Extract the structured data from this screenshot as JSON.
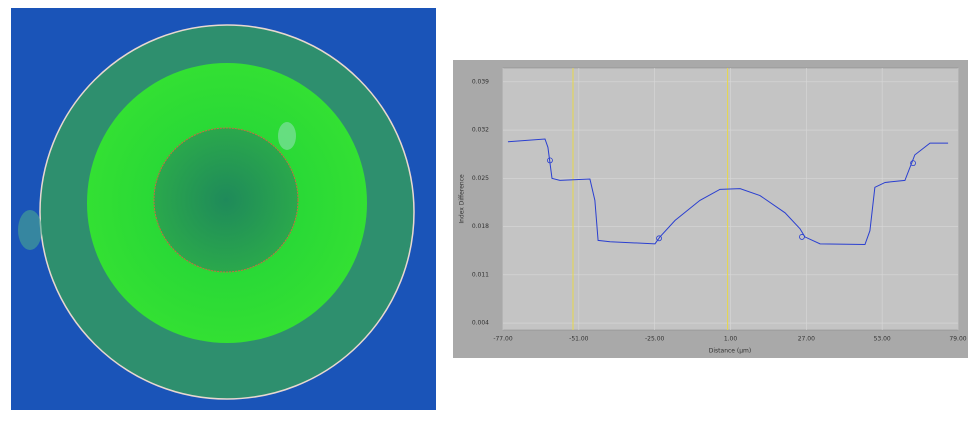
{
  "chart_data": {
    "type": "line",
    "xlabel": "Distance (µm)",
    "ylabel": "Index Difference",
    "x": [
      -75.3,
      -62.6,
      -61.6,
      -60.2,
      -57.5,
      -47.2,
      -45.5,
      -44.4,
      -40.3,
      -24.9,
      -23.2,
      -18.0,
      -9.5,
      -2.6,
      4.3,
      11.1,
      19.7,
      24.8,
      26.5,
      31.7,
      47.1,
      48.8,
      50.5,
      54.0,
      60.8,
      64.2,
      69.4,
      75.6
    ],
    "series": [
      {
        "color": "#2a3fd0",
        "values": [
          0.0303,
          0.0307,
          0.0295,
          0.025,
          0.0247,
          0.0249,
          0.0218,
          0.016,
          0.0158,
          0.0155,
          0.0165,
          0.0189,
          0.0218,
          0.0234,
          0.0235,
          0.0225,
          0.02,
          0.0177,
          0.0165,
          0.0155,
          0.0154,
          0.0174,
          0.0237,
          0.0244,
          0.0247,
          0.0284,
          0.0301,
          0.0301
        ]
      }
    ],
    "markers": {
      "x": [
        -60.9,
        -23.5,
        25.5,
        63.6
      ],
      "values": [
        0.0276,
        0.0163,
        0.0165,
        0.0272
      ]
    },
    "cursors": [
      -53.0,
      0
    ],
    "xlim": [
      -77,
      79
    ],
    "xticks": [
      {
        "value": -77,
        "label": "-77.00"
      },
      {
        "value": -51,
        "label": "-51.00"
      },
      {
        "value": -25,
        "label": "-25.00"
      },
      {
        "value": 1,
        "label": "1.00"
      },
      {
        "value": 27,
        "label": "27.00"
      },
      {
        "value": 53,
        "label": "53.00"
      },
      {
        "value": 79,
        "label": "79.00"
      }
    ],
    "ylim": [
      0.003,
      0.041
    ],
    "yticks": [
      0.004,
      0.011,
      0.018,
      0.025,
      0.032,
      0.039
    ],
    "grid": true
  }
}
